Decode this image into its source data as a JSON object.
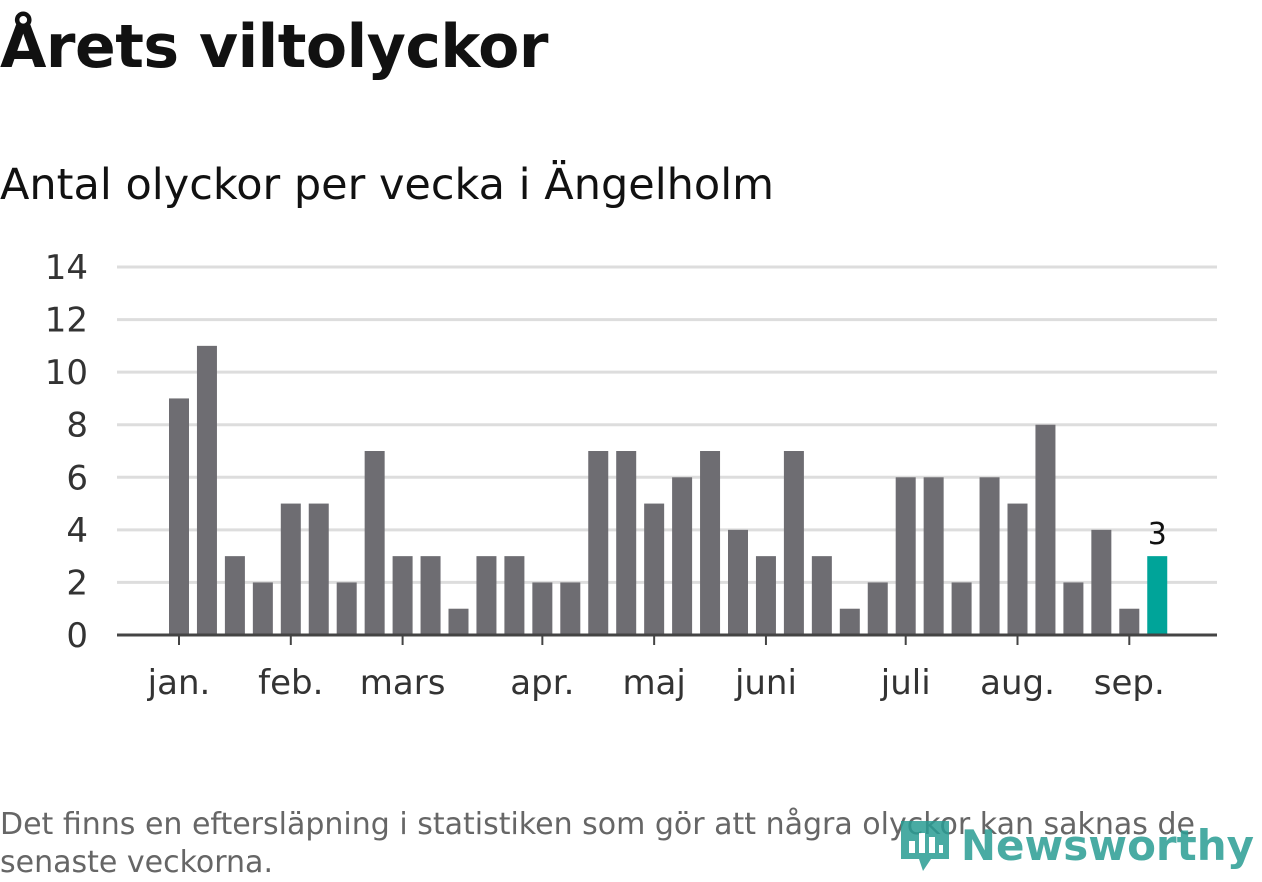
{
  "title": "Årets viltolyckor",
  "subtitle": "Antal olyckor per vecka i Ängelholm",
  "footnote": "Det finns en eftersläpning i statistiken som gör att några olyckor kan saknas de senaste veckorna.",
  "brand": {
    "name": "Newsworthy",
    "icon": "newsworthy-logo-icon",
    "color": "#2a9d94"
  },
  "chart_data": {
    "type": "bar",
    "title": "Antal olyckor per vecka i Ängelholm",
    "ylim": [
      0,
      14
    ],
    "yticks": [
      0,
      2,
      4,
      6,
      8,
      10,
      12,
      14
    ],
    "grid": true,
    "month_labels": [
      {
        "label": "jan.",
        "week": 1
      },
      {
        "label": "feb.",
        "week": 5
      },
      {
        "label": "mars",
        "week": 9
      },
      {
        "label": "apr.",
        "week": 14
      },
      {
        "label": "maj",
        "week": 18
      },
      {
        "label": "juni",
        "week": 22
      },
      {
        "label": "juli",
        "week": 27
      },
      {
        "label": "aug.",
        "week": 31
      },
      {
        "label": "sep.",
        "week": 35
      }
    ],
    "weeks": [
      1,
      2,
      3,
      4,
      5,
      6,
      7,
      8,
      9,
      10,
      11,
      12,
      13,
      14,
      15,
      16,
      17,
      18,
      19,
      20,
      21,
      22,
      23,
      24,
      25,
      26,
      27,
      28,
      29,
      30,
      31,
      32,
      33,
      34,
      35,
      36
    ],
    "values": [
      9,
      11,
      3,
      2,
      5,
      5,
      2,
      7,
      3,
      3,
      1,
      3,
      3,
      2,
      2,
      7,
      7,
      5,
      6,
      7,
      4,
      3,
      7,
      3,
      1,
      2,
      6,
      6,
      2,
      6,
      5,
      8,
      2,
      4,
      1,
      3
    ],
    "highlight": {
      "index": 35,
      "label": "3",
      "color": "#00a499"
    },
    "bar_color": "#6e6d72",
    "grid_color": "#dddddd",
    "axis_color": "#444444"
  }
}
